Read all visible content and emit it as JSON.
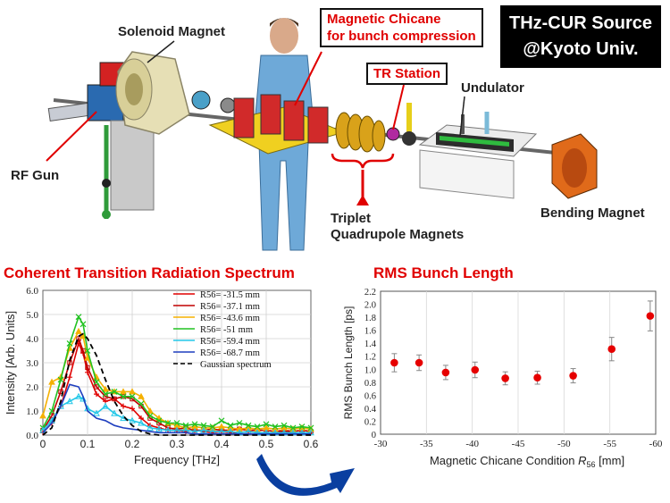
{
  "header": {
    "title_line1": "THz-CUR Source",
    "title_line2": "@Kyoto Univ."
  },
  "diagram": {
    "labels": {
      "solenoid": "Solenoid Magnet",
      "chicane_line1": "Magnetic Chicane",
      "chicane_line2": "for bunch compression",
      "tr_station": "TR Station",
      "undulator": "Undulator",
      "rf_gun": "RF Gun",
      "triplet_line1": "Triplet",
      "triplet_line2": "Quadrupole Magnets",
      "bending": "Bending Magnet"
    }
  },
  "colors": {
    "accent_red": "#e00000",
    "arrow_blue": "#0a3fa0"
  },
  "chart_data": [
    {
      "type": "line",
      "title": "Coherent Transition Radiation Spectrum",
      "xlabel": "Frequency [THz]",
      "ylabel": "Intensity [Arb. Units]",
      "xlim": [
        0,
        0.6
      ],
      "ylim": [
        0,
        6
      ],
      "xticks": [
        "0",
        "0.1",
        "0.2",
        "0.3",
        "0.4",
        "0.5",
        "0.6"
      ],
      "yticks": [
        "0.0",
        "1.0",
        "2.0",
        "3.0",
        "4.0",
        "5.0",
        "6.0"
      ],
      "grid": true,
      "legend_position": "top-right",
      "x": [
        0,
        0.02,
        0.04,
        0.06,
        0.08,
        0.09,
        0.1,
        0.12,
        0.14,
        0.16,
        0.18,
        0.2,
        0.22,
        0.24,
        0.26,
        0.28,
        0.3,
        0.32,
        0.34,
        0.36,
        0.38,
        0.4,
        0.42,
        0.44,
        0.46,
        0.48,
        0.5,
        0.52,
        0.54,
        0.56,
        0.58,
        0.6
      ],
      "series": [
        {
          "name": "R56= -31.5 mm",
          "color": "#e00000",
          "marker": "plus",
          "values": [
            0.1,
            0.5,
            1.2,
            2.4,
            3.8,
            3.4,
            2.6,
            1.7,
            1.4,
            1.5,
            1.2,
            1.1,
            0.7,
            0.4,
            0.3,
            0.2,
            0.2,
            0.15,
            0.2,
            0.15,
            0.1,
            0.15,
            0.1,
            0.1,
            0.15,
            0.1,
            0.1,
            0.1,
            0.15,
            0.1,
            0.1,
            0.1
          ]
        },
        {
          "name": "R56= -37.1 mm",
          "color": "#c00000",
          "marker": "square",
          "values": [
            0.2,
            0.8,
            1.8,
            3.0,
            4.0,
            3.5,
            2.8,
            2.0,
            1.6,
            1.5,
            1.6,
            1.5,
            1.2,
            0.7,
            0.5,
            0.3,
            0.25,
            0.3,
            0.2,
            0.2,
            0.25,
            0.2,
            0.2,
            0.25,
            0.2,
            0.2,
            0.2,
            0.15,
            0.2,
            0.15,
            0.2,
            0.15
          ]
        },
        {
          "name": "R56= -43.6 mm",
          "color": "#f5b000",
          "marker": "triangle",
          "values": [
            0.8,
            2.2,
            2.4,
            3.6,
            4.3,
            4.1,
            3.2,
            2.4,
            1.9,
            1.8,
            1.8,
            1.8,
            1.6,
            1.0,
            0.7,
            0.5,
            0.4,
            0.3,
            0.35,
            0.3,
            0.3,
            0.35,
            0.3,
            0.25,
            0.3,
            0.25,
            0.3,
            0.25,
            0.3,
            0.25,
            0.3,
            0.25
          ]
        },
        {
          "name": "R56= -51 mm",
          "color": "#22c222",
          "marker": "x",
          "values": [
            0.3,
            1.0,
            2.3,
            3.8,
            4.9,
            4.6,
            3.5,
            2.2,
            1.7,
            1.8,
            1.6,
            1.6,
            1.3,
            0.8,
            0.6,
            0.5,
            0.5,
            0.4,
            0.45,
            0.4,
            0.35,
            0.6,
            0.4,
            0.5,
            0.4,
            0.35,
            0.45,
            0.35,
            0.4,
            0.3,
            0.35,
            0.3
          ]
        },
        {
          "name": "R56= -59.4 mm",
          "color": "#22c7e8",
          "marker": "triangle-open",
          "values": [
            0.2,
            0.6,
            1.2,
            1.4,
            1.6,
            1.5,
            1.1,
            0.9,
            1.2,
            0.9,
            0.7,
            0.6,
            0.5,
            0.3,
            0.25,
            0.2,
            0.2,
            0.2,
            0.15,
            0.2,
            0.15,
            0.15,
            0.15,
            0.1,
            0.15,
            0.1,
            0.1,
            0.1,
            0.1,
            0.1,
            0.1,
            0.1
          ]
        },
        {
          "name": "R56= -68.7 mm",
          "color": "#1f3fbf",
          "marker": "line",
          "values": [
            0.1,
            0.5,
            1.2,
            2.1,
            2.0,
            1.6,
            1.0,
            0.7,
            0.6,
            0.4,
            0.3,
            0.25,
            0.2,
            0.15,
            0.1,
            0.1,
            0.1,
            0.1,
            0.05,
            0.05,
            0.05,
            0.05,
            0.05,
            0.05,
            0.05,
            0.05,
            0.05,
            0.05,
            0.05,
            0.05,
            0.05,
            0.05
          ]
        },
        {
          "name": "Gaussian spectrum",
          "color": "#000000",
          "marker": "dashed",
          "values": [
            0.0,
            0.3,
            1.4,
            3.1,
            4.1,
            4.2,
            4.0,
            3.3,
            2.3,
            1.4,
            0.8,
            0.4,
            0.15,
            0.05,
            0.0,
            0.0,
            0.0,
            0.0,
            0.0,
            0.0,
            0.0,
            0.0,
            0.0,
            0.0,
            0.0,
            0.0,
            0.0,
            0.0,
            0.0,
            0.0,
            0.0,
            0.0
          ]
        }
      ]
    },
    {
      "type": "scatter",
      "title": "RMS Bunch Length",
      "xlabel": "Magnetic Chicane Condition R56 [mm]",
      "xlabel_main": "Magnetic Chicane Condition ",
      "xlabel_sym": "R",
      "xlabel_sub": "56",
      "xlabel_unit": " [mm]",
      "ylabel": "RMS Bunch Length [ps]",
      "xlim": [
        -30,
        -60
      ],
      "ylim": [
        0,
        2.2
      ],
      "xticks": [
        "-30",
        "-35",
        "-40",
        "-45",
        "-50",
        "-55",
        "-60"
      ],
      "yticks": [
        "0",
        "0.2",
        "0.4",
        "0.6",
        "0.8",
        "1.0",
        "1.2",
        "1.4",
        "1.6",
        "1.8",
        "2.0",
        "2.2"
      ],
      "grid": true,
      "color": "#e60000",
      "points": [
        {
          "x": -31.5,
          "y": 1.1,
          "err": 0.14
        },
        {
          "x": -34.2,
          "y": 1.1,
          "err": 0.12
        },
        {
          "x": -37.1,
          "y": 0.95,
          "err": 0.11
        },
        {
          "x": -40.3,
          "y": 0.99,
          "err": 0.12
        },
        {
          "x": -43.6,
          "y": 0.86,
          "err": 0.1
        },
        {
          "x": -47.1,
          "y": 0.87,
          "err": 0.1
        },
        {
          "x": -51.0,
          "y": 0.9,
          "err": 0.11
        },
        {
          "x": -55.2,
          "y": 1.31,
          "err": 0.18
        },
        {
          "x": -59.4,
          "y": 1.82,
          "err": 0.23
        }
      ]
    }
  ]
}
